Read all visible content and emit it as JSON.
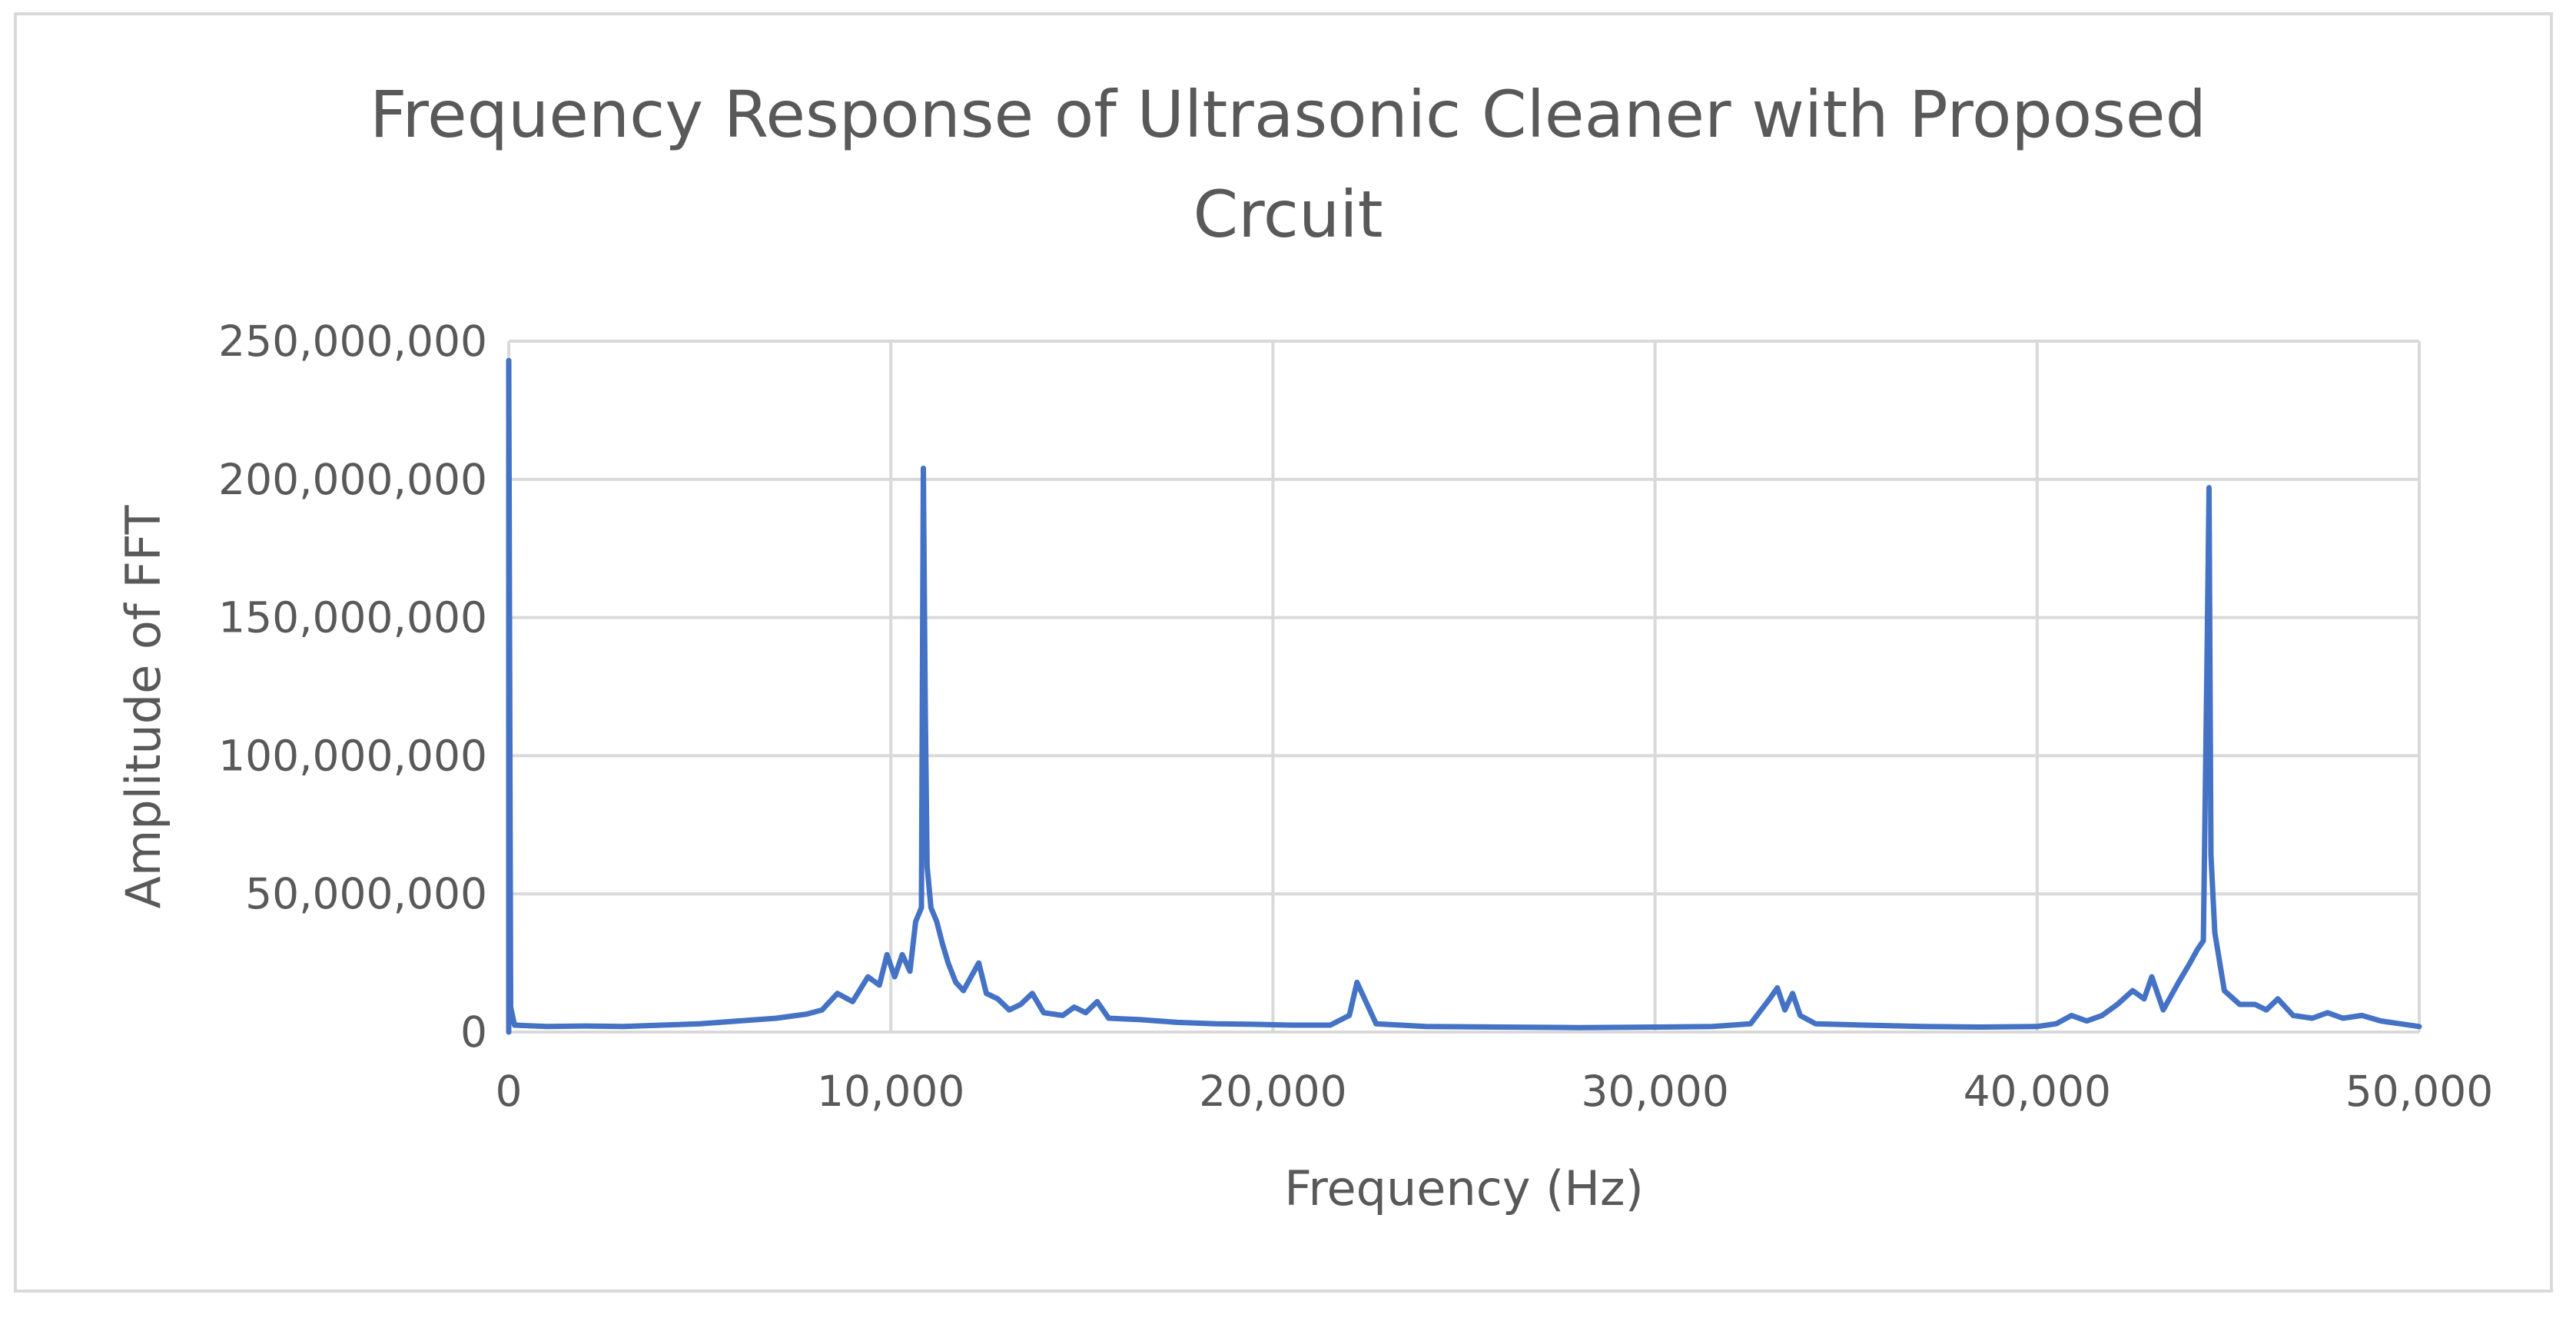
{
  "chart_data": {
    "type": "line",
    "title_lines": [
      "Frequency Response of Ultrasonic Cleaner with Proposed",
      "Crcuit"
    ],
    "xlabel": "Frequency (Hz)",
    "ylabel": "Amplitude of FFT",
    "xlim": [
      0,
      50000
    ],
    "ylim": [
      0,
      250000000
    ],
    "x_ticks": [
      0,
      10000,
      20000,
      30000,
      40000,
      50000
    ],
    "x_tick_labels": [
      "0",
      "10,000",
      "20,000",
      "30,000",
      "40,000",
      "50,000"
    ],
    "y_ticks": [
      0,
      50000000,
      100000000,
      150000000,
      200000000,
      250000000
    ],
    "y_tick_labels": [
      "0",
      "50,000,000",
      "100,000,000",
      "150,000,000",
      "200,000,000",
      "250,000,000"
    ],
    "grid": true,
    "legend": "none",
    "series_color": "#4472c4",
    "series": [
      {
        "points": [
          [
            0,
            243000000
          ],
          [
            50,
            9000000
          ],
          [
            150,
            2500000
          ],
          [
            1000,
            2000000
          ],
          [
            2000,
            2200000
          ],
          [
            3000,
            2000000
          ],
          [
            4000,
            2500000
          ],
          [
            5000,
            3000000
          ],
          [
            6000,
            4000000
          ],
          [
            7000,
            5000000
          ],
          [
            7800,
            6500000
          ],
          [
            8200,
            8000000
          ],
          [
            8600,
            14000000
          ],
          [
            9000,
            11000000
          ],
          [
            9400,
            20000000
          ],
          [
            9700,
            17000000
          ],
          [
            9900,
            28000000
          ],
          [
            10100,
            20000000
          ],
          [
            10300,
            28000000
          ],
          [
            10500,
            22000000
          ],
          [
            10650,
            40000000
          ],
          [
            10800,
            45000000
          ],
          [
            10850,
            204000000
          ],
          [
            10900,
            120000000
          ],
          [
            10950,
            60000000
          ],
          [
            11050,
            45000000
          ],
          [
            11200,
            40000000
          ],
          [
            11350,
            32000000
          ],
          [
            11500,
            25000000
          ],
          [
            11700,
            18000000
          ],
          [
            11900,
            15000000
          ],
          [
            12100,
            20000000
          ],
          [
            12300,
            25000000
          ],
          [
            12500,
            14000000
          ],
          [
            12800,
            12000000
          ],
          [
            13100,
            8000000
          ],
          [
            13400,
            10000000
          ],
          [
            13700,
            14000000
          ],
          [
            14000,
            7000000
          ],
          [
            14500,
            6000000
          ],
          [
            14800,
            9000000
          ],
          [
            15100,
            7000000
          ],
          [
            15400,
            11000000
          ],
          [
            15700,
            5000000
          ],
          [
            16500,
            4500000
          ],
          [
            17500,
            3500000
          ],
          [
            18500,
            3000000
          ],
          [
            19500,
            2800000
          ],
          [
            20500,
            2500000
          ],
          [
            21500,
            2500000
          ],
          [
            22000,
            6000000
          ],
          [
            22200,
            18000000
          ],
          [
            22400,
            12000000
          ],
          [
            22700,
            3000000
          ],
          [
            24000,
            2000000
          ],
          [
            26000,
            1800000
          ],
          [
            28000,
            1600000
          ],
          [
            30000,
            1800000
          ],
          [
            31500,
            2000000
          ],
          [
            32500,
            3000000
          ],
          [
            33000,
            12000000
          ],
          [
            33200,
            16000000
          ],
          [
            33400,
            8000000
          ],
          [
            33600,
            14000000
          ],
          [
            33800,
            6000000
          ],
          [
            34200,
            3000000
          ],
          [
            35500,
            2500000
          ],
          [
            37000,
            2000000
          ],
          [
            38500,
            1800000
          ],
          [
            40000,
            2000000
          ],
          [
            40500,
            3000000
          ],
          [
            40900,
            6000000
          ],
          [
            41300,
            4000000
          ],
          [
            41700,
            6000000
          ],
          [
            42100,
            10000000
          ],
          [
            42500,
            15000000
          ],
          [
            42800,
            12000000
          ],
          [
            43000,
            20000000
          ],
          [
            43300,
            8000000
          ],
          [
            43700,
            18000000
          ],
          [
            44000,
            25000000
          ],
          [
            44200,
            30000000
          ],
          [
            44350,
            33000000
          ],
          [
            44450,
            140000000
          ],
          [
            44500,
            197000000
          ],
          [
            44550,
            64000000
          ],
          [
            44650,
            36000000
          ],
          [
            44900,
            15000000
          ],
          [
            45300,
            10000000
          ],
          [
            45700,
            10000000
          ],
          [
            46000,
            8000000
          ],
          [
            46300,
            12000000
          ],
          [
            46700,
            6000000
          ],
          [
            47200,
            5000000
          ],
          [
            47600,
            7000000
          ],
          [
            48000,
            5000000
          ],
          [
            48500,
            6000000
          ],
          [
            49000,
            4000000
          ],
          [
            49500,
            3000000
          ],
          [
            50000,
            2000000
          ]
        ]
      }
    ]
  }
}
